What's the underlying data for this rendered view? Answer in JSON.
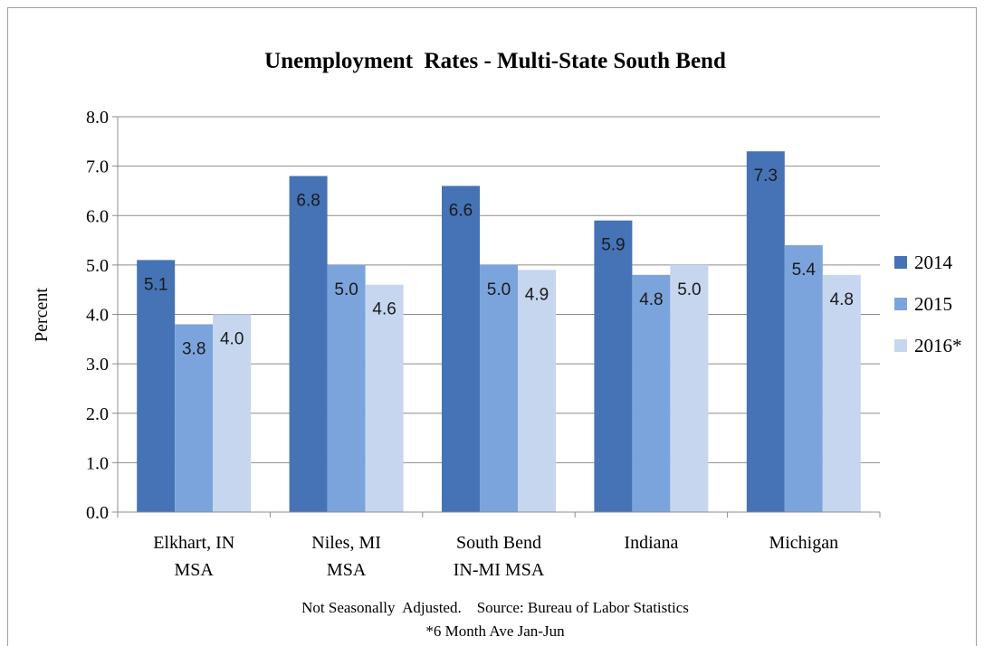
{
  "chart_data": {
    "type": "bar",
    "title": "Unemployment  Rates - Multi-State South Bend",
    "ylabel": "Percent",
    "xlabel": "",
    "ylim": [
      0,
      8
    ],
    "yticks": [
      "0.0",
      "1.0",
      "2.0",
      "3.0",
      "4.0",
      "5.0",
      "6.0",
      "7.0",
      "8.0"
    ],
    "grid": true,
    "legend_position": "right",
    "categories": [
      [
        "Elkhart, IN",
        "MSA"
      ],
      [
        "Niles, MI",
        "MSA"
      ],
      [
        "South Bend",
        "IN-MI MSA"
      ],
      [
        "Indiana"
      ],
      [
        "Michigan"
      ]
    ],
    "series": [
      {
        "name": "2014",
        "color": "#4573b5",
        "values": [
          5.1,
          6.8,
          6.6,
          5.9,
          7.3
        ]
      },
      {
        "name": "2015",
        "color": "#7ca4dc",
        "values": [
          3.8,
          5.0,
          5.0,
          4.8,
          5.4
        ]
      },
      {
        "name": "2016*",
        "color": "#c6d6ef",
        "values": [
          4.0,
          4.6,
          4.9,
          5.0,
          4.8
        ]
      }
    ],
    "footnotes": [
      "Not Seasonally  Adjusted.    Source: Bureau of Labor Statistics",
      "*6 Month Ave Jan-Jun"
    ]
  }
}
